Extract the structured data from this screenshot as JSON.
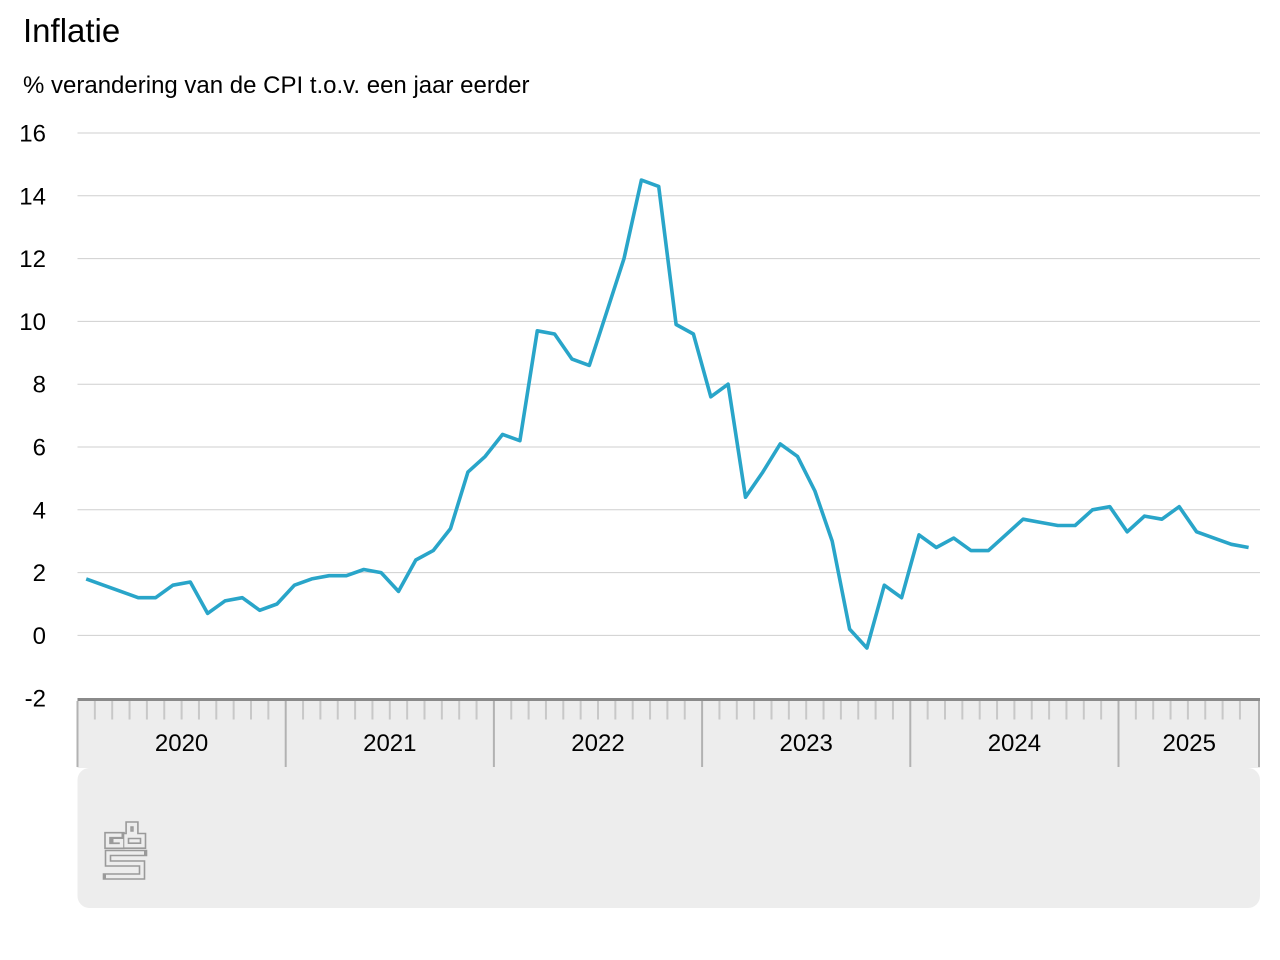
{
  "chart_data": {
    "type": "line",
    "title": "Inflatie",
    "subtitle": "% verandering van de CPI t.o.v. een jaar eerder",
    "frequency": "monthly",
    "x_start": "2020-01",
    "x_end": "2025-08",
    "year_labels": [
      "2020",
      "2021",
      "2022",
      "2023",
      "2024",
      "2025"
    ],
    "values_by_year": {
      "2020": [
        1.8,
        1.6,
        1.4,
        1.2,
        1.2,
        1.6,
        1.7,
        0.7,
        1.1,
        1.2,
        0.8,
        1.0
      ],
      "2021": [
        1.6,
        1.8,
        1.9,
        1.9,
        2.1,
        2.0,
        1.4,
        2.4,
        2.7,
        3.4,
        5.2,
        5.7
      ],
      "2022": [
        6.4,
        6.2,
        9.7,
        9.6,
        8.8,
        8.6,
        10.3,
        12.0,
        14.5,
        14.3,
        9.9,
        9.6
      ],
      "2023": [
        7.6,
        8.0,
        4.4,
        5.2,
        6.1,
        5.7,
        4.6,
        3.0,
        0.2,
        -0.4,
        1.6,
        1.2
      ],
      "2024": [
        3.2,
        2.8,
        3.1,
        2.7,
        2.7,
        3.2,
        3.7,
        3.6,
        3.5,
        3.5,
        4.0,
        4.1
      ],
      "2025": [
        3.3,
        3.8,
        3.7,
        4.1,
        3.3,
        3.1,
        2.9,
        2.8
      ]
    },
    "y_ticks": [
      16,
      14,
      12,
      10,
      8,
      6,
      4,
      2,
      0,
      -2
    ],
    "ylim": [
      -2,
      16
    ],
    "grid": true,
    "legend": "none",
    "logo_text": "cbs"
  },
  "colors": {
    "line": "#29a5c9",
    "grid": "#cfcfcf",
    "axis_line": "#8a8a8a",
    "band_bg": "#ededed",
    "month_tick": "#c8c8c8",
    "year_divider": "#b2b2b2",
    "logo": "#9a9a9a",
    "text": "#000000"
  }
}
